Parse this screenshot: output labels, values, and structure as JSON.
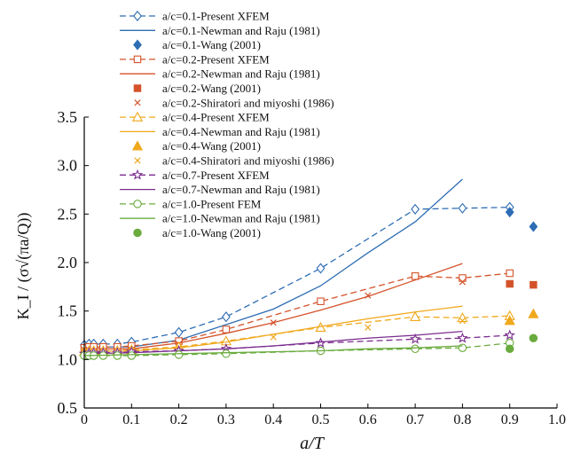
{
  "chart_data": {
    "type": "line",
    "xlabel": "a/T",
    "ylabel": "K_I / (σ√(πa/Q))",
    "xlim": [
      0,
      1.0
    ],
    "ylim": [
      0.5,
      3.5
    ],
    "x_ticks": [
      "0",
      "0.1",
      "0.2",
      "0.3",
      "0.4",
      "0.5",
      "0.6",
      "0.7",
      "0.8",
      "0.9",
      "1.0"
    ],
    "y_ticks": [
      "0.5",
      "1.0",
      "1.5",
      "2.0",
      "2.5",
      "3.0",
      "3.5"
    ],
    "legend_position": "top",
    "series": [
      {
        "name": "a/c=0.1-Present XFEM",
        "color": "#2e6db4",
        "style": "dashed",
        "marker": "diamond-open",
        "x": [
          0.0,
          0.01,
          0.02,
          0.04,
          0.07,
          0.1,
          0.2,
          0.3,
          0.5,
          0.7,
          0.8,
          0.9
        ],
        "y": [
          1.15,
          1.16,
          1.16,
          1.16,
          1.16,
          1.18,
          1.28,
          1.44,
          1.94,
          2.55,
          2.56,
          2.57
        ]
      },
      {
        "name": "a/c=0.1-Newman and Raju (1981)",
        "color": "#2e6db4",
        "style": "solid",
        "marker": "none",
        "x": [
          0.0,
          0.1,
          0.2,
          0.3,
          0.4,
          0.5,
          0.6,
          0.7,
          0.8
        ],
        "y": [
          1.13,
          1.13,
          1.2,
          1.36,
          1.52,
          1.76,
          2.1,
          2.42,
          2.86
        ]
      },
      {
        "name": "a/c=0.1-Wang (2001)",
        "color": "#2e6db4",
        "style": "none",
        "marker": "diamond-filled",
        "x": [
          0.9,
          0.95
        ],
        "y": [
          2.52,
          2.37
        ]
      },
      {
        "name": "a/c=0.2-Present XFEM",
        "color": "#d4532a",
        "style": "dashed",
        "marker": "square-open",
        "x": [
          0.0,
          0.01,
          0.02,
          0.04,
          0.07,
          0.1,
          0.2,
          0.3,
          0.5,
          0.7,
          0.8,
          0.9
        ],
        "y": [
          1.12,
          1.13,
          1.13,
          1.13,
          1.13,
          1.14,
          1.19,
          1.31,
          1.6,
          1.86,
          1.84,
          1.89
        ]
      },
      {
        "name": "a/c=0.2-Newman and Raju (1981)",
        "color": "#d4532a",
        "style": "solid",
        "marker": "none",
        "x": [
          0.0,
          0.1,
          0.2,
          0.3,
          0.4,
          0.5,
          0.6,
          0.7,
          0.8
        ],
        "y": [
          1.11,
          1.11,
          1.17,
          1.27,
          1.38,
          1.51,
          1.65,
          1.82,
          1.99
        ]
      },
      {
        "name": "a/c=0.2-Wang (2001)",
        "color": "#d4532a",
        "style": "none",
        "marker": "square-filled",
        "x": [
          0.9,
          0.95
        ],
        "y": [
          1.78,
          1.77
        ]
      },
      {
        "name": "a/c=0.2-Shiratori and miyoshi (1986)",
        "color": "#d4532a",
        "style": "none",
        "marker": "x",
        "x": [
          0.0,
          0.1,
          0.2,
          0.4,
          0.6,
          0.8
        ],
        "y": [
          1.1,
          1.1,
          1.16,
          1.38,
          1.66,
          1.8
        ]
      },
      {
        "name": "a/c=0.4-Present XFEM",
        "color": "#f0a81c",
        "style": "dashed",
        "marker": "triangle-open",
        "x": [
          0.0,
          0.01,
          0.02,
          0.04,
          0.07,
          0.1,
          0.2,
          0.3,
          0.5,
          0.7,
          0.8,
          0.9
        ],
        "y": [
          1.08,
          1.09,
          1.09,
          1.09,
          1.09,
          1.1,
          1.13,
          1.19,
          1.33,
          1.44,
          1.43,
          1.45
        ]
      },
      {
        "name": "a/c=0.4-Newman and Raju (1981)",
        "color": "#f0a81c",
        "style": "solid",
        "marker": "none",
        "x": [
          0.0,
          0.1,
          0.2,
          0.3,
          0.4,
          0.5,
          0.6,
          0.7,
          0.8
        ],
        "y": [
          1.08,
          1.09,
          1.12,
          1.18,
          1.26,
          1.34,
          1.42,
          1.49,
          1.55
        ]
      },
      {
        "name": "a/c=0.4-Wang (2001)",
        "color": "#f0a81c",
        "style": "none",
        "marker": "triangle-filled",
        "x": [
          0.9,
          0.95
        ],
        "y": [
          1.4,
          1.47
        ]
      },
      {
        "name": "a/c=0.4-Shiratori and miyoshi (1986)",
        "color": "#f0a81c",
        "style": "none",
        "marker": "x",
        "x": [
          0.0,
          0.1,
          0.2,
          0.4,
          0.6,
          0.8
        ],
        "y": [
          1.08,
          1.09,
          1.12,
          1.23,
          1.33,
          1.4
        ]
      },
      {
        "name": "a/c=0.7-Present XFEM",
        "color": "#7b2d8e",
        "style": "dashed",
        "marker": "star-open",
        "x": [
          0.0,
          0.01,
          0.02,
          0.04,
          0.07,
          0.1,
          0.2,
          0.3,
          0.5,
          0.7,
          0.8,
          0.9
        ],
        "y": [
          1.06,
          1.07,
          1.07,
          1.07,
          1.07,
          1.08,
          1.09,
          1.11,
          1.17,
          1.21,
          1.22,
          1.25
        ]
      },
      {
        "name": "a/c=0.7-Newman and Raju (1981)",
        "color": "#7b2d8e",
        "style": "solid",
        "marker": "none",
        "x": [
          0.0,
          0.1,
          0.2,
          0.3,
          0.4,
          0.5,
          0.6,
          0.7,
          0.8
        ],
        "y": [
          1.06,
          1.07,
          1.09,
          1.11,
          1.14,
          1.18,
          1.22,
          1.25,
          1.29
        ]
      },
      {
        "name": "a/c=1.0-Present FEM",
        "color": "#6aab3e",
        "style": "dashed",
        "marker": "circle-open",
        "x": [
          0.0,
          0.01,
          0.02,
          0.04,
          0.07,
          0.1,
          0.2,
          0.3,
          0.5,
          0.7,
          0.8,
          0.9
        ],
        "y": [
          1.04,
          1.04,
          1.04,
          1.04,
          1.04,
          1.04,
          1.05,
          1.06,
          1.09,
          1.11,
          1.12,
          1.17
        ]
      },
      {
        "name": "a/c=1.0-Newman and Raju (1981)",
        "color": "#6aab3e",
        "style": "solid",
        "marker": "none",
        "x": [
          0.0,
          0.1,
          0.2,
          0.3,
          0.4,
          0.5,
          0.6,
          0.7,
          0.8
        ],
        "y": [
          1.04,
          1.05,
          1.06,
          1.07,
          1.08,
          1.09,
          1.11,
          1.12,
          1.14
        ]
      },
      {
        "name": "a/c=1.0-Wang (2001)",
        "color": "#6aab3e",
        "style": "none",
        "marker": "circle-filled",
        "x": [
          0.9,
          0.95
        ],
        "y": [
          1.11,
          1.22
        ]
      }
    ]
  }
}
